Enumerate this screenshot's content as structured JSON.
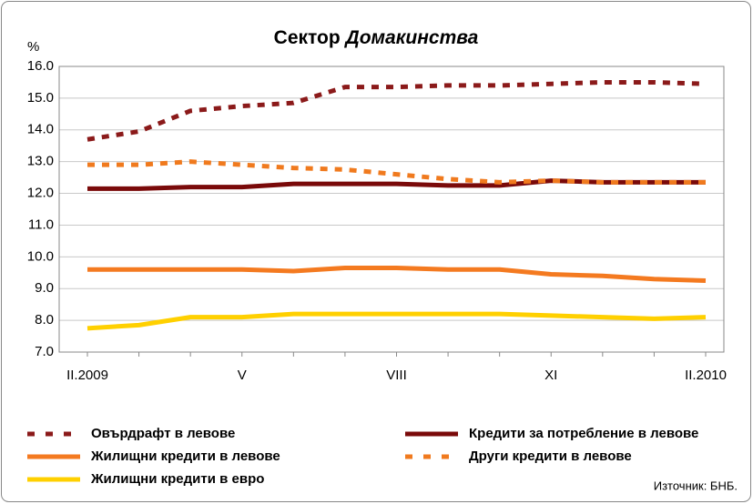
{
  "chart_data": {
    "type": "line",
    "title": "Сектор",
    "title_italic": "Домакинства",
    "y_axis_label": "%",
    "source": "Източник: БНБ.",
    "categories": [
      "II.2009",
      null,
      null,
      "V",
      null,
      null,
      "VIII",
      null,
      null,
      "XI",
      null,
      null,
      "II.2010"
    ],
    "ylim": [
      7,
      16
    ],
    "yticks": [
      {
        "value": 7,
        "label": "7.0"
      },
      {
        "value": 8,
        "label": "8.0"
      },
      {
        "value": 9,
        "label": "9.0"
      },
      {
        "value": 10,
        "label": "10.0"
      },
      {
        "value": 11,
        "label": "11.0"
      },
      {
        "value": 12,
        "label": "12.0"
      },
      {
        "value": 13,
        "label": "13.0"
      },
      {
        "value": 14,
        "label": "14.0"
      },
      {
        "value": 15,
        "label": "15.0"
      },
      {
        "value": 16,
        "label": "16.0"
      }
    ],
    "grid": true,
    "series": [
      {
        "name": "Овърдрафт в левове",
        "color": "#8b1a1a",
        "dashed": true,
        "values": [
          13.7,
          13.95,
          14.6,
          14.75,
          14.85,
          15.35,
          15.35,
          15.4,
          15.4,
          15.45,
          15.5,
          15.5,
          15.45
        ]
      },
      {
        "name": "Кредити за потребление в левове",
        "color": "#7a0a0a",
        "dashed": false,
        "values": [
          12.15,
          12.15,
          12.2,
          12.2,
          12.3,
          12.3,
          12.3,
          12.25,
          12.25,
          12.4,
          12.35,
          12.35,
          12.35
        ]
      },
      {
        "name": "Жилищни кредити в левове",
        "color": "#f47a20",
        "dashed": false,
        "values": [
          9.6,
          9.6,
          9.6,
          9.6,
          9.55,
          9.65,
          9.65,
          9.6,
          9.6,
          9.45,
          9.4,
          9.3,
          9.25
        ]
      },
      {
        "name": "Други кредити в левове",
        "color": "#f07a1e",
        "dashed": true,
        "values": [
          12.9,
          12.9,
          13.0,
          12.9,
          12.8,
          12.75,
          12.6,
          12.45,
          12.35,
          12.4,
          12.35,
          12.35,
          12.35
        ]
      },
      {
        "name": "Жилищни кредити в евро",
        "color": "#ffd000",
        "dashed": false,
        "values": [
          7.75,
          7.85,
          8.1,
          8.1,
          8.2,
          8.2,
          8.2,
          8.2,
          8.2,
          8.15,
          8.1,
          8.05,
          8.1
        ]
      }
    ]
  }
}
